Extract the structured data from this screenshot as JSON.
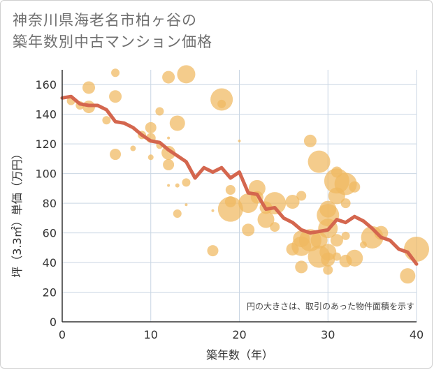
{
  "title_line1": "神奈川県海老名市柏ヶ谷の",
  "title_line2": "築年数別中古マンション価格",
  "chart_data": {
    "type": "scatter",
    "title": "神奈川県海老名市柏ヶ谷の築年数別中古マンション価格",
    "xlabel": "築年数（年）",
    "ylabel": "坪（3.3㎡）単価（万円）",
    "xlim": [
      0,
      40
    ],
    "ylim": [
      0,
      170
    ],
    "xticks": [
      0,
      10,
      20,
      30,
      40
    ],
    "yticks": [
      0,
      20,
      40,
      60,
      80,
      100,
      120,
      140,
      160
    ],
    "grid": true,
    "annotation": "円の大きさは、取引のあった物件面積を示す",
    "colors": {
      "bubble": "#f0b960",
      "line": "#d4664e",
      "grid": "#c9d6e3",
      "axis": "#333333"
    },
    "series": [
      {
        "type": "bubble",
        "points": [
          {
            "x": 1,
            "y": 149,
            "s": 6
          },
          {
            "x": 2,
            "y": 146,
            "s": 6
          },
          {
            "x": 3,
            "y": 158,
            "s": 9
          },
          {
            "x": 3,
            "y": 145,
            "s": 9
          },
          {
            "x": 5,
            "y": 136,
            "s": 6
          },
          {
            "x": 6,
            "y": 168,
            "s": 6
          },
          {
            "x": 6,
            "y": 152,
            "s": 9
          },
          {
            "x": 6,
            "y": 113,
            "s": 8
          },
          {
            "x": 8,
            "y": 117,
            "s": 4
          },
          {
            "x": 9,
            "y": 126,
            "s": 6
          },
          {
            "x": 10,
            "y": 131,
            "s": 8
          },
          {
            "x": 10,
            "y": 124,
            "s": 7
          },
          {
            "x": 10,
            "y": 111,
            "s": 4
          },
          {
            "x": 11,
            "y": 142,
            "s": 6
          },
          {
            "x": 11,
            "y": 119,
            "s": 5
          },
          {
            "x": 12,
            "y": 165,
            "s": 9
          },
          {
            "x": 12,
            "y": 124,
            "s": 2
          },
          {
            "x": 12,
            "y": 114,
            "s": 10
          },
          {
            "x": 12,
            "y": 106,
            "s": 8
          },
          {
            "x": 12,
            "y": 92,
            "s": 2
          },
          {
            "x": 13,
            "y": 134,
            "s": 11
          },
          {
            "x": 13,
            "y": 92,
            "s": 3
          },
          {
            "x": 13,
            "y": 73,
            "s": 6
          },
          {
            "x": 14,
            "y": 167,
            "s": 13
          },
          {
            "x": 14,
            "y": 94,
            "s": 6
          },
          {
            "x": 14,
            "y": 79,
            "s": 2
          },
          {
            "x": 17,
            "y": 75,
            "s": 2
          },
          {
            "x": 17,
            "y": 48,
            "s": 8
          },
          {
            "x": 18,
            "y": 150,
            "s": 16
          },
          {
            "x": 18,
            "y": 147,
            "s": 6
          },
          {
            "x": 19,
            "y": 89,
            "s": 7
          },
          {
            "x": 19,
            "y": 81,
            "s": 8
          },
          {
            "x": 19,
            "y": 76,
            "s": 18
          },
          {
            "x": 20,
            "y": 122,
            "s": 2
          },
          {
            "x": 21,
            "y": 80,
            "s": 14
          },
          {
            "x": 21,
            "y": 62,
            "s": 9
          },
          {
            "x": 22,
            "y": 90,
            "s": 12
          },
          {
            "x": 22,
            "y": 84,
            "s": 9
          },
          {
            "x": 23,
            "y": 77,
            "s": 9
          },
          {
            "x": 23,
            "y": 69,
            "s": 12
          },
          {
            "x": 24,
            "y": 80,
            "s": 16
          },
          {
            "x": 24,
            "y": 64,
            "s": 7
          },
          {
            "x": 26,
            "y": 81,
            "s": 10
          },
          {
            "x": 26,
            "y": 49,
            "s": 9
          },
          {
            "x": 27,
            "y": 85,
            "s": 7
          },
          {
            "x": 27,
            "y": 56,
            "s": 12
          },
          {
            "x": 27,
            "y": 51,
            "s": 14
          },
          {
            "x": 27,
            "y": 37,
            "s": 9
          },
          {
            "x": 28,
            "y": 122,
            "s": 9
          },
          {
            "x": 28,
            "y": 55,
            "s": 16
          },
          {
            "x": 29,
            "y": 108,
            "s": 16
          },
          {
            "x": 29,
            "y": 55,
            "s": 12
          },
          {
            "x": 29,
            "y": 44,
            "s": 16
          },
          {
            "x": 30,
            "y": 76,
            "s": 12
          },
          {
            "x": 30,
            "y": 72,
            "s": 16
          },
          {
            "x": 30,
            "y": 63,
            "s": 14
          },
          {
            "x": 30,
            "y": 47,
            "s": 12
          },
          {
            "x": 30,
            "y": 42,
            "s": 10
          },
          {
            "x": 30,
            "y": 35,
            "s": 7
          },
          {
            "x": 31,
            "y": 101,
            "s": 8
          },
          {
            "x": 31,
            "y": 95,
            "s": 18
          },
          {
            "x": 31,
            "y": 85,
            "s": 12
          },
          {
            "x": 31,
            "y": 55,
            "s": 9
          },
          {
            "x": 31,
            "y": 44,
            "s": 6
          },
          {
            "x": 32,
            "y": 93,
            "s": 16
          },
          {
            "x": 32,
            "y": 80,
            "s": 7
          },
          {
            "x": 32,
            "y": 58,
            "s": 6
          },
          {
            "x": 32,
            "y": 41,
            "s": 9
          },
          {
            "x": 33,
            "y": 91,
            "s": 8
          },
          {
            "x": 33,
            "y": 43,
            "s": 12
          },
          {
            "x": 34,
            "y": 52,
            "s": 5
          },
          {
            "x": 35,
            "y": 57,
            "s": 16
          },
          {
            "x": 36,
            "y": 60,
            "s": 10
          },
          {
            "x": 39,
            "y": 31,
            "s": 11
          },
          {
            "x": 40,
            "y": 49,
            "s": 18
          }
        ]
      },
      {
        "type": "line",
        "x": [
          0,
          1,
          2,
          3,
          4,
          5,
          6,
          7,
          8,
          9,
          10,
          11,
          12,
          13,
          14,
          15,
          16,
          17,
          18,
          19,
          20,
          21,
          22,
          23,
          24,
          25,
          26,
          27,
          28,
          29,
          30,
          31,
          32,
          33,
          34,
          35,
          36,
          37,
          38,
          39,
          40
        ],
        "y": [
          151,
          152,
          147,
          146,
          146,
          143,
          135,
          134,
          131,
          126,
          122,
          121,
          116,
          112,
          108,
          97,
          104,
          101,
          104,
          97,
          101,
          87,
          86,
          76,
          77,
          70,
          67,
          62,
          60,
          61,
          62,
          69,
          67,
          71,
          68,
          63,
          57,
          55,
          49,
          47,
          39
        ]
      }
    ]
  }
}
